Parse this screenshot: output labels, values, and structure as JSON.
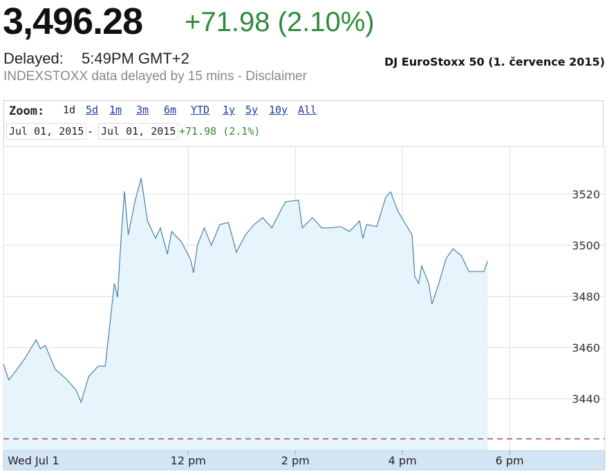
{
  "header": {
    "price": "3,496.28",
    "change": "+71.98 (2.10%)",
    "delayed_label": "Delayed:",
    "delayed_time": "5:49PM GMT+2",
    "disclaimer": "INDEXSTOXX data delayed by 15 mins - Disclaimer"
  },
  "toolbar": {
    "zoom_label": "Zoom:",
    "zoom_options": [
      "1d",
      "5d",
      "1m",
      "3m",
      "6m",
      "YTD",
      "1y",
      "5y",
      "10y",
      "All"
    ],
    "from_date": "Jul 01, 2015",
    "separator": "-",
    "to_date": "Jul 01, 2015",
    "range_change": "+71.98 (2.1%)"
  },
  "chart_data": {
    "type": "area",
    "title": "DJ EuroStoxx 50 (1. července 2015)",
    "date_label": "Wed Jul 1",
    "x": [
      8.55,
      8.65,
      8.75,
      8.94,
      9.16,
      9.24,
      9.33,
      9.52,
      9.72,
      9.91,
      10.0,
      10.14,
      10.32,
      10.45,
      10.55,
      10.62,
      10.68,
      10.75,
      10.81,
      10.88,
      11.01,
      11.12,
      11.24,
      11.39,
      11.48,
      11.61,
      11.69,
      11.87,
      12.04,
      12.1,
      12.17,
      12.3,
      12.43,
      12.59,
      12.75,
      12.9,
      13.07,
      13.23,
      13.39,
      13.56,
      13.76,
      13.82,
      14.06,
      14.13,
      14.32,
      14.49,
      14.66,
      14.84,
      15.01,
      15.2,
      15.26,
      15.33,
      15.52,
      15.69,
      15.78,
      15.91,
      16.1,
      16.18,
      16.23,
      16.3,
      16.36,
      16.49,
      16.55,
      16.68,
      16.81,
      16.94,
      17.1,
      17.24,
      17.52,
      17.59
    ],
    "series": [
      {
        "name": "DJ EuroStoxx 50",
        "color": "#4a7fa6",
        "values": [
          3453.5,
          3447.3,
          3450,
          3455.4,
          3463,
          3459.5,
          3460.8,
          3451.4,
          3447.8,
          3443.2,
          3438.6,
          3448.6,
          3452.7,
          3452.7,
          3471.6,
          3485.1,
          3479.7,
          3504.1,
          3521.1,
          3504.1,
          3517.6,
          3526.2,
          3509.5,
          3502.7,
          3506.8,
          3496.5,
          3505.4,
          3501.4,
          3494.6,
          3489.2,
          3500,
          3506.8,
          3500,
          3508.1,
          3508.9,
          3497.3,
          3504.1,
          3508.1,
          3510.8,
          3506.8,
          3514.9,
          3517,
          3517.6,
          3506.8,
          3510.8,
          3506.8,
          3506.8,
          3507.3,
          3505.4,
          3509.5,
          3502.7,
          3508.1,
          3507.3,
          3518.9,
          3520.8,
          3513.5,
          3506.8,
          3504.1,
          3487.8,
          3485.1,
          3491.9,
          3485.1,
          3477,
          3485.1,
          3494.6,
          3498.6,
          3495.9,
          3489.7,
          3489.7,
          3493.8
        ]
      }
    ],
    "fill_color": "#e6f4fc",
    "previous_close": 3424.3,
    "previous_close_color": "#8b2a2a",
    "xlim": [
      8.55,
      19.78
    ],
    "xticks": [
      {
        "value": 12,
        "label": "12 pm"
      },
      {
        "value": 14,
        "label": "2 pm"
      },
      {
        "value": 16,
        "label": "4 pm"
      },
      {
        "value": 18,
        "label": "6 pm"
      }
    ],
    "ylim": [
      3419.7,
      3538.6
    ],
    "yticks": [
      3440,
      3460,
      3480,
      3500,
      3520
    ],
    "grid": true
  }
}
